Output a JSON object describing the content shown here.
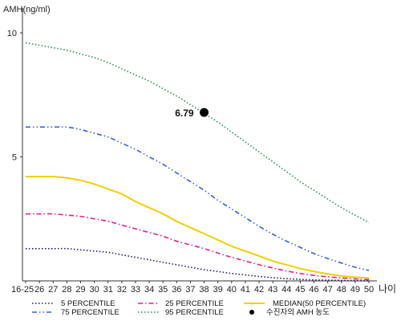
{
  "chart_data": {
    "type": "line",
    "ylabel": "AMH(ng/ml)",
    "xlabel": "나이",
    "x_categories": [
      "16-25",
      "26",
      "27",
      "28",
      "29",
      "30",
      "31",
      "32",
      "33",
      "34",
      "35",
      "36",
      "37",
      "38",
      "39",
      "40",
      "41",
      "42",
      "43",
      "44",
      "45",
      "46",
      "47",
      "48",
      "49",
      "50"
    ],
    "y_ticks": [
      5,
      10
    ],
    "ylim": [
      0,
      11
    ],
    "grid": false,
    "series": [
      {
        "name": "5 PERCENTILE",
        "color": "#1a1a70",
        "dash": "dotted",
        "values": [
          1.3,
          1.3,
          1.3,
          1.3,
          1.25,
          1.2,
          1.15,
          1.05,
          0.95,
          0.85,
          0.75,
          0.65,
          0.55,
          0.45,
          0.38,
          0.3,
          0.24,
          0.18,
          0.13,
          0.09,
          0.06,
          0.04,
          0.03,
          0.02,
          0.01,
          0.0
        ]
      },
      {
        "name": "25 PERCENTILE",
        "color": "#e0208a",
        "dash": "dashdot",
        "values": [
          2.7,
          2.7,
          2.7,
          2.65,
          2.6,
          2.5,
          2.4,
          2.25,
          2.1,
          1.95,
          1.8,
          1.6,
          1.45,
          1.3,
          1.12,
          0.95,
          0.8,
          0.65,
          0.52,
          0.4,
          0.3,
          0.22,
          0.16,
          0.12,
          0.08,
          0.05
        ]
      },
      {
        "name": "MEDIAN(50 PERCENTILE)",
        "color": "#f0cf00",
        "dash": "solid",
        "values": [
          4.2,
          4.2,
          4.2,
          4.15,
          4.05,
          3.9,
          3.7,
          3.5,
          3.2,
          2.95,
          2.7,
          2.4,
          2.15,
          1.9,
          1.65,
          1.4,
          1.2,
          1.0,
          0.8,
          0.65,
          0.5,
          0.38,
          0.28,
          0.2,
          0.15,
          0.12
        ]
      },
      {
        "name": "75 PERCENTILE",
        "color": "#3a5fd0",
        "dash": "dashdotdot",
        "values": [
          6.2,
          6.2,
          6.2,
          6.2,
          6.1,
          5.95,
          5.8,
          5.55,
          5.3,
          5.0,
          4.7,
          4.35,
          4.0,
          3.65,
          3.25,
          2.9,
          2.55,
          2.2,
          1.88,
          1.6,
          1.35,
          1.1,
          0.9,
          0.72,
          0.55,
          0.42
        ]
      },
      {
        "name": "95 PERCENTILE",
        "color": "#2e8b57",
        "dash": "dotted",
        "values": [
          9.6,
          9.5,
          9.4,
          9.3,
          9.15,
          9.0,
          8.8,
          8.55,
          8.3,
          8.05,
          7.75,
          7.45,
          7.1,
          6.75,
          6.4,
          6.0,
          5.6,
          5.2,
          4.8,
          4.4,
          4.0,
          3.65,
          3.3,
          2.95,
          2.65,
          2.35
        ]
      }
    ],
    "patient": {
      "name": "수진자의 AMH 농도",
      "age": "38",
      "value": 6.79,
      "label": "6.79"
    },
    "legend_position": "bottom"
  }
}
